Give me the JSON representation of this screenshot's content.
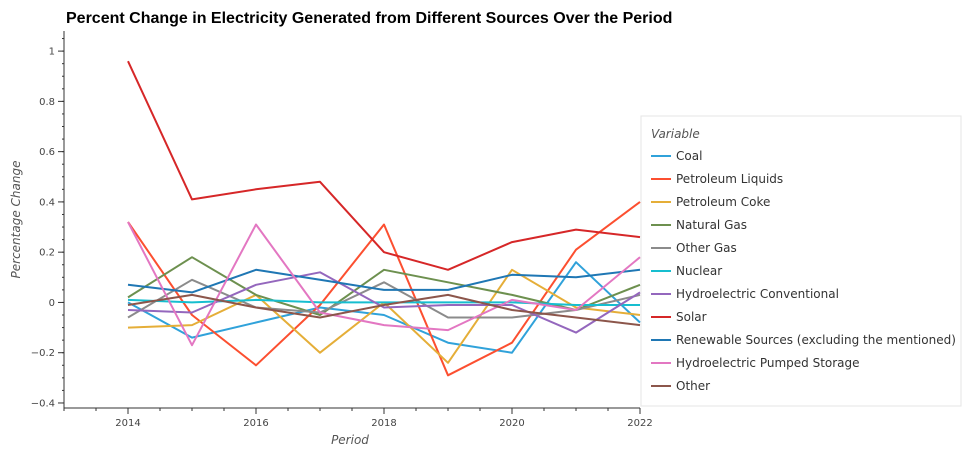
{
  "chart_data": {
    "type": "line",
    "title": "Percent Change in Electricity Generated from Different Sources Over the Period",
    "xlabel": "Period",
    "ylabel": "Percentage Change",
    "xlim": [
      2013,
      2022
    ],
    "ylim": [
      -0.42,
      1.08
    ],
    "x_ticks": [
      2014,
      2016,
      2018,
      2020,
      2022
    ],
    "y_ticks": [
      -0.4,
      -0.2,
      0,
      0.2,
      0.4,
      0.6,
      0.8,
      1
    ],
    "y_tick_labels": [
      "−0.4",
      "−0.2",
      "0",
      "0.2",
      "0.4",
      "0.6",
      "0.8",
      "1"
    ],
    "legend_title": "Variable",
    "legend_position": "right",
    "grid": false,
    "x": [
      2014,
      2015,
      2016,
      2017,
      2018,
      2019,
      2020,
      2021,
      2022
    ],
    "series": [
      {
        "name": "Coal",
        "color": "#30a2da",
        "values": [
          0.0,
          -0.14,
          -0.08,
          -0.02,
          -0.05,
          -0.16,
          -0.2,
          0.16,
          -0.08
        ]
      },
      {
        "name": "Petroleum Liquids",
        "color": "#fc4f30",
        "values": [
          0.32,
          -0.05,
          -0.25,
          -0.01,
          0.31,
          -0.29,
          -0.16,
          0.21,
          0.4
        ]
      },
      {
        "name": "Petroleum Coke",
        "color": "#e5ae38",
        "values": [
          -0.1,
          -0.09,
          0.03,
          -0.2,
          0.0,
          -0.24,
          0.13,
          -0.02,
          -0.05
        ]
      },
      {
        "name": "Natural Gas",
        "color": "#6d904f",
        "values": [
          0.02,
          0.18,
          0.03,
          -0.05,
          0.13,
          0.08,
          0.03,
          -0.03,
          0.07
        ]
      },
      {
        "name": "Other Gas",
        "color": "#8b8b8b",
        "values": [
          -0.06,
          0.09,
          -0.02,
          -0.04,
          0.08,
          -0.06,
          -0.06,
          -0.03,
          0.03
        ]
      },
      {
        "name": "Nuclear",
        "color": "#17becf",
        "values": [
          0.01,
          0.0,
          0.01,
          0.0,
          0.0,
          0.0,
          0.0,
          -0.01,
          -0.01
        ]
      },
      {
        "name": "Hydroelectric Conventional",
        "color": "#9467bd",
        "values": [
          -0.03,
          -0.04,
          0.07,
          0.12,
          -0.02,
          -0.01,
          -0.01,
          -0.12,
          0.04
        ]
      },
      {
        "name": "Solar",
        "color": "#d62728",
        "values": [
          0.96,
          0.41,
          0.45,
          0.48,
          0.2,
          0.13,
          0.24,
          0.29,
          0.26
        ]
      },
      {
        "name": "Renewable Sources (excluding the mentioned)",
        "color": "#1f77b4",
        "values": [
          0.07,
          0.04,
          0.13,
          0.09,
          0.05,
          0.05,
          0.11,
          0.1,
          0.13
        ]
      },
      {
        "name": "Hydroelectric Pumped Storage",
        "color": "#e377c2",
        "values": [
          0.32,
          -0.17,
          0.31,
          -0.04,
          -0.09,
          -0.11,
          0.01,
          -0.03,
          0.18
        ]
      },
      {
        "name": "Other",
        "color": "#8c564b",
        "values": [
          -0.01,
          0.03,
          -0.02,
          -0.06,
          -0.01,
          0.03,
          -0.03,
          -0.06,
          -0.09
        ]
      }
    ]
  }
}
